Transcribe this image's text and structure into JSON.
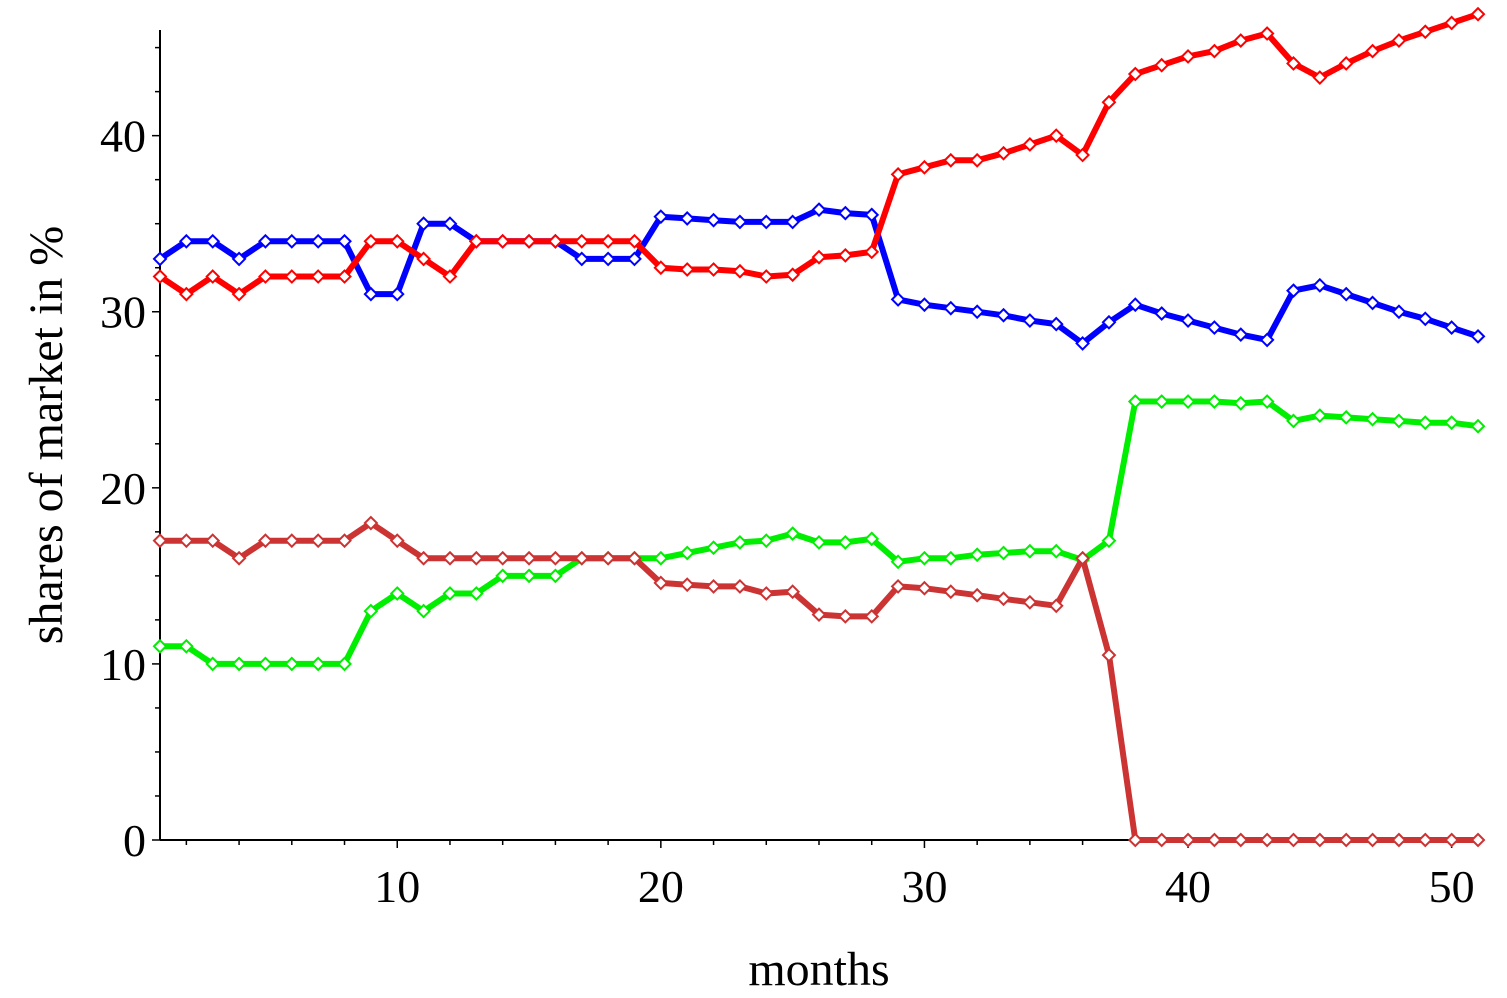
{
  "chart_data": {
    "type": "line",
    "title": "",
    "xlabel": "months",
    "ylabel": "shares of market in %",
    "xlim": [
      1,
      51
    ],
    "ylim": [
      0,
      46
    ],
    "xticks": [
      10,
      20,
      30,
      40,
      50
    ],
    "xtick_labels": [
      "10",
      "20",
      "30",
      "40",
      "50"
    ],
    "yticks": [
      0,
      10,
      20,
      30,
      40
    ],
    "ytick_labels": [
      "0",
      "10",
      "20",
      "30",
      "40"
    ],
    "grid": false,
    "legend": "none",
    "x": [
      1,
      2,
      3,
      4,
      5,
      6,
      7,
      8,
      9,
      10,
      11,
      12,
      13,
      14,
      15,
      16,
      17,
      18,
      19,
      20,
      21,
      22,
      23,
      24,
      25,
      26,
      27,
      28,
      29,
      30,
      31,
      32,
      33,
      34,
      35,
      36,
      37,
      38,
      39,
      40,
      41,
      42,
      43,
      44,
      45,
      46,
      47,
      48,
      49,
      50,
      51
    ],
    "series": [
      {
        "name": "blue",
        "color": "#0000ff",
        "values": [
          33,
          34,
          34,
          33,
          34,
          34,
          34,
          34,
          31,
          31,
          35,
          35,
          34,
          34,
          34,
          34,
          33,
          33,
          33,
          35.4,
          35.3,
          35.2,
          35.1,
          35.1,
          35.1,
          35.8,
          35.6,
          35.5,
          30.7,
          30.4,
          30.2,
          30.0,
          29.8,
          29.5,
          29.3,
          28.2,
          29.4,
          30.4,
          29.9,
          29.5,
          29.1,
          28.7,
          28.4,
          31.2,
          31.5,
          31.0,
          30.5,
          30.0,
          29.6,
          29.1,
          28.6
        ]
      },
      {
        "name": "red",
        "color": "#ff0000",
        "values": [
          32,
          31,
          32,
          31,
          32,
          32,
          32,
          32,
          34,
          34,
          33,
          32,
          34,
          34,
          34,
          34,
          34,
          34,
          34,
          32.5,
          32.4,
          32.4,
          32.3,
          32.0,
          32.1,
          33.1,
          33.2,
          33.4,
          37.8,
          38.2,
          38.6,
          38.6,
          39.0,
          39.5,
          40.0,
          38.9,
          41.9,
          43.5,
          44.0,
          44.5,
          44.8,
          45.4,
          45.8,
          44.1,
          43.3,
          44.1,
          44.8,
          45.4,
          45.9,
          46.4,
          46.9
        ]
      },
      {
        "name": "green",
        "color": "#00ee00",
        "values": [
          11,
          11,
          10,
          10,
          10,
          10,
          10,
          10,
          13,
          14,
          13,
          14,
          14,
          15,
          15,
          15,
          16,
          16,
          16,
          16,
          16.3,
          16.6,
          16.9,
          17.0,
          17.4,
          16.9,
          16.9,
          17.1,
          15.8,
          16.0,
          16.0,
          16.2,
          16.3,
          16.4,
          16.4,
          15.9,
          17.0,
          24.9,
          24.9,
          24.9,
          24.9,
          24.8,
          24.9,
          23.8,
          24.1,
          24.0,
          23.9,
          23.8,
          23.7,
          23.7,
          23.5
        ]
      },
      {
        "name": "brown",
        "color": "#cc3333",
        "values": [
          17,
          17,
          17,
          16,
          17,
          17,
          17,
          17,
          18,
          17,
          16,
          16,
          16,
          16,
          16,
          16,
          16,
          16,
          16,
          14.6,
          14.5,
          14.4,
          14.4,
          14.0,
          14.1,
          12.8,
          12.7,
          12.7,
          14.4,
          14.3,
          14.1,
          13.9,
          13.7,
          13.5,
          13.3,
          16.0,
          10.5,
          0,
          0,
          0,
          0,
          0,
          0,
          0,
          0,
          0,
          0,
          0,
          0,
          0,
          0
        ]
      }
    ]
  }
}
